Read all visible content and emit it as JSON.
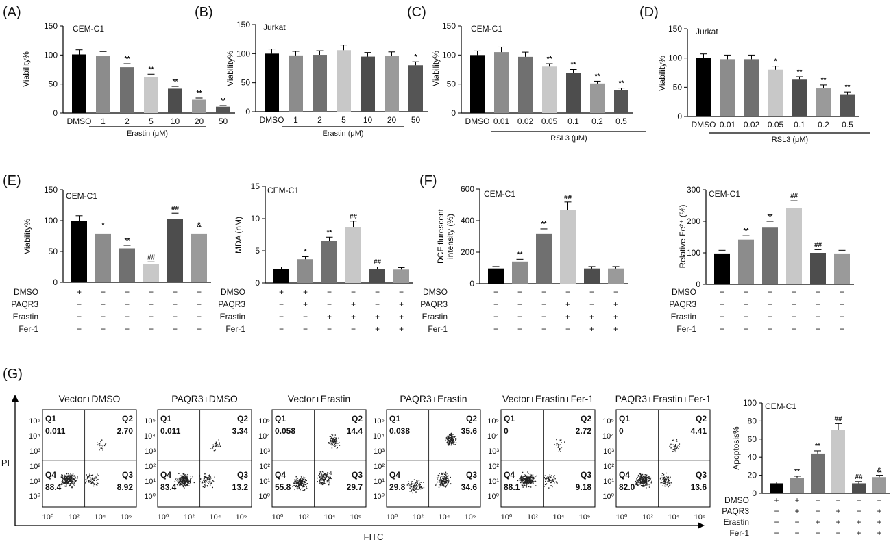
{
  "figure": {
    "colors": {
      "black": "#000000",
      "gray1": "#8c8c8c",
      "gray2": "#707070",
      "light": "#c8c8c8",
      "dark": "#4d4d4d",
      "dark2": "#555555",
      "mid": "#9a9a9a",
      "dot": "#222222"
    },
    "treatment_rows": [
      "DMSO",
      "PAQR3",
      "Erastin",
      "Fer-1"
    ],
    "treatment_signs": [
      [
        "+",
        "+",
        "−",
        "−",
        "−",
        "−"
      ],
      [
        "−",
        "+",
        "−",
        "+",
        "−",
        "+"
      ],
      [
        "−",
        "−",
        "+",
        "+",
        "+",
        "+"
      ],
      [
        "−",
        "−",
        "−",
        "−",
        "+",
        "+"
      ]
    ]
  },
  "chart_data": [
    {
      "panel": "(A)",
      "type": "bar",
      "cell_line": "CEM-C1",
      "ylabel": "Viability%",
      "ylim": [
        0,
        150
      ],
      "yticks": [
        0,
        50,
        100,
        150
      ],
      "categories": [
        "DMSO",
        "1",
        "2",
        "5",
        "10",
        "20",
        "50"
      ],
      "values": [
        101,
        98,
        79,
        62,
        42,
        23,
        11
      ],
      "errors": [
        8,
        8,
        6,
        5,
        4,
        3,
        2
      ],
      "colors": [
        "#000000",
        "#8c8c8c",
        "#707070",
        "#c8c8c8",
        "#4d4d4d",
        "#9a9a9a",
        "#555555"
      ],
      "sig": [
        "",
        "",
        "**",
        "**",
        "**",
        "**",
        "**"
      ],
      "group_label": "Erastin (μM)"
    },
    {
      "panel": "(B)",
      "type": "bar",
      "cell_line": "Jurkat",
      "ylabel": "Viability%",
      "ylim": [
        0,
        150
      ],
      "yticks": [
        0,
        50,
        100,
        150
      ],
      "categories": [
        "DMSO",
        "1",
        "2",
        "5",
        "10",
        "20",
        "50"
      ],
      "values": [
        100,
        97,
        98,
        106,
        95,
        96,
        80
      ],
      "errors": [
        8,
        7,
        7,
        9,
        7,
        7,
        6
      ],
      "colors": [
        "#000000",
        "#8c8c8c",
        "#707070",
        "#c8c8c8",
        "#4d4d4d",
        "#9a9a9a",
        "#555555"
      ],
      "sig": [
        "",
        "",
        "",
        "",
        "",
        "",
        "*"
      ],
      "group_label": "Erastin (μM)"
    },
    {
      "panel": "(C)",
      "type": "bar",
      "cell_line": "CEM-C1",
      "ylabel": "Viability%",
      "ylim": [
        0,
        150
      ],
      "yticks": [
        0,
        50,
        100,
        150
      ],
      "categories": [
        "DMSO",
        "0.01",
        "0.02",
        "0.05",
        "0.1",
        "0.2",
        "0.5"
      ],
      "values": [
        100,
        105,
        97,
        80,
        69,
        51,
        40
      ],
      "errors": [
        7,
        9,
        8,
        5,
        6,
        4,
        3
      ],
      "colors": [
        "#000000",
        "#8c8c8c",
        "#707070",
        "#c8c8c8",
        "#4d4d4d",
        "#9a9a9a",
        "#555555"
      ],
      "sig": [
        "",
        "",
        "",
        "**",
        "**",
        "**",
        "**"
      ],
      "group_label": "RSL3 (μM)"
    },
    {
      "panel": "(D)",
      "type": "bar",
      "cell_line": "Jurkat",
      "ylabel": "Viability%",
      "ylim": [
        0,
        150
      ],
      "yticks": [
        0,
        50,
        100,
        150
      ],
      "categories": [
        "DMSO",
        "0.01",
        "0.02",
        "0.05",
        "0.1",
        "0.2",
        "0.5"
      ],
      "values": [
        100,
        98,
        98,
        80,
        63,
        48,
        38
      ],
      "errors": [
        7,
        7,
        7,
        6,
        5,
        6,
        4
      ],
      "colors": [
        "#000000",
        "#8c8c8c",
        "#707070",
        "#c8c8c8",
        "#4d4d4d",
        "#9a9a9a",
        "#555555"
      ],
      "sig": [
        "",
        "",
        "",
        "*",
        "**",
        "**",
        "**"
      ],
      "group_label": "RSL3 (μM)"
    },
    {
      "panel": "(E)",
      "type": "bar",
      "cell_line": "CEM-C1",
      "ylabel": "Viability%",
      "ylim": [
        0,
        150
      ],
      "yticks": [
        0,
        50,
        100,
        150
      ],
      "values": [
        100,
        79,
        55,
        30,
        103,
        79
      ],
      "errors": [
        8,
        6,
        5,
        3,
        9,
        6
      ],
      "colors": [
        "#000000",
        "#8c8c8c",
        "#707070",
        "#c8c8c8",
        "#4d4d4d",
        "#9a9a9a"
      ],
      "sig": [
        "",
        "*",
        "**",
        "##",
        "##",
        "&"
      ]
    },
    {
      "panel": "",
      "type": "bar",
      "cell_line": "CEM-C1",
      "ylabel": "MDA (nM)",
      "ylim": [
        0,
        15
      ],
      "yticks": [
        0,
        5,
        10,
        15
      ],
      "values": [
        2.2,
        3.7,
        6.5,
        8.7,
        2.2,
        2.1
      ],
      "errors": [
        0.3,
        0.4,
        0.6,
        0.9,
        0.3,
        0.3
      ],
      "colors": [
        "#000000",
        "#8c8c8c",
        "#707070",
        "#c8c8c8",
        "#4d4d4d",
        "#9a9a9a"
      ],
      "sig": [
        "",
        "*",
        "**",
        "##",
        "##",
        ""
      ]
    },
    {
      "panel": "(F)",
      "type": "bar",
      "cell_line": "CEM-C1",
      "ylabel": "DCF flurescent intensity (%)",
      "ylim": [
        0,
        600
      ],
      "yticks": [
        0,
        200,
        400,
        600
      ],
      "values": [
        97,
        140,
        318,
        468,
        97,
        97
      ],
      "errors": [
        12,
        15,
        30,
        50,
        12,
        12
      ],
      "colors": [
        "#000000",
        "#8c8c8c",
        "#707070",
        "#c8c8c8",
        "#4d4d4d",
        "#9a9a9a"
      ],
      "sig": [
        "",
        "**",
        "**",
        "##",
        "",
        ""
      ]
    },
    {
      "panel": "",
      "type": "bar",
      "cell_line": "CEM-C1",
      "ylabel": "Relative Fe²⁺ (%)",
      "ylim": [
        0,
        300
      ],
      "yticks": [
        0,
        100,
        200,
        300
      ],
      "values": [
        98,
        142,
        180,
        243,
        100,
        98
      ],
      "errors": [
        10,
        12,
        20,
        22,
        10,
        10
      ],
      "colors": [
        "#000000",
        "#8c8c8c",
        "#707070",
        "#c8c8c8",
        "#4d4d4d",
        "#9a9a9a"
      ],
      "sig": [
        "",
        "**",
        "**",
        "##",
        "##",
        ""
      ]
    },
    {
      "panel": "",
      "type": "bar",
      "cell_line": "CEM-C1",
      "ylabel": "Apoptosis%",
      "ylim": [
        0,
        100
      ],
      "yticks": [
        0,
        20,
        40,
        60,
        80,
        100
      ],
      "values": [
        11,
        17,
        44,
        70,
        11,
        18
      ],
      "errors": [
        1.5,
        2,
        3,
        7,
        2,
        2
      ],
      "colors": [
        "#000000",
        "#8c8c8c",
        "#707070",
        "#c8c8c8",
        "#4d4d4d",
        "#9a9a9a"
      ],
      "sig": [
        "",
        "**",
        "**",
        "##",
        "##",
        "&"
      ]
    },
    {
      "panel": "(G)",
      "type": "scatter",
      "xlabel": "FITC",
      "ylabel": "PI",
      "quadrant_names": [
        "Q1",
        "Q2",
        "Q4",
        "Q3"
      ],
      "plots": [
        {
          "title": "Vector+DMSO",
          "q1": "0.011",
          "q2": "2.70",
          "q4": "88.4",
          "q3": "8.92"
        },
        {
          "title": "PAQR3+DMSO",
          "q1": "0.011",
          "q2": "3.34",
          "q4": "83.4",
          "q3": "13.2"
        },
        {
          "title": "Vector+Erastin",
          "q1": "0.058",
          "q2": "14.4",
          "q4": "55.8",
          "q3": "29.7"
        },
        {
          "title": "PAQR3+Erastin",
          "q1": "0.038",
          "q2": "35.6",
          "q4": "29.8",
          "q3": "34.6"
        },
        {
          "title": "Vector+Erastin+Fer-1",
          "q1": "0",
          "q2": "2.72",
          "q4": "88.1",
          "q3": "9.18"
        },
        {
          "title": "PAQR3+Erastin+Fer-1",
          "q1": "0",
          "q2": "4.41",
          "q4": "82.0",
          "q3": "13.6"
        }
      ],
      "yticks": [
        "10⁵",
        "10⁴",
        "10³",
        "10²",
        "10¹",
        "10⁰"
      ],
      "xticks": [
        "10⁰",
        "10²",
        "10⁴",
        "10⁶"
      ]
    }
  ]
}
